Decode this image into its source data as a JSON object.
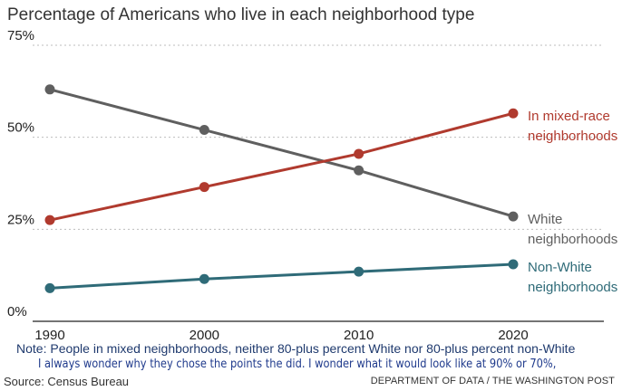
{
  "chart_data": {
    "type": "line",
    "title": "Percentage of Americans who live in each neighborhood type",
    "x": [
      "1990",
      "2000",
      "2010",
      "2020"
    ],
    "ylim": [
      0,
      75
    ],
    "yticks": [
      "0%",
      "25%",
      "50%",
      "75%"
    ],
    "grid": "horizontal dotted",
    "series": [
      {
        "name_lines": [
          "White",
          "neighborhoods"
        ],
        "values": [
          63,
          52,
          41,
          28.5
        ],
        "color": "#5f5f5f"
      },
      {
        "name_lines": [
          "In mixed-race",
          "neighborhoods"
        ],
        "values": [
          27.5,
          36.5,
          45.5,
          56.5
        ],
        "color": "#b03a2e"
      },
      {
        "name_lines": [
          "Non-White",
          "neighborhoods"
        ],
        "values": [
          9,
          11.5,
          13.5,
          15.5
        ],
        "color": "#2f6b78"
      }
    ],
    "note": "Note: People in mixed neighborhoods, neither 80-plus percent White nor 80-plus percent non-White",
    "handwritten_note": "I always wonder why they chose the points the did.   I wonder what it would look like at 90% or 70%,",
    "source": "Source: Census Bureau",
    "credit": "DEPARTMENT OF DATA / THE WASHINGTON POST"
  }
}
